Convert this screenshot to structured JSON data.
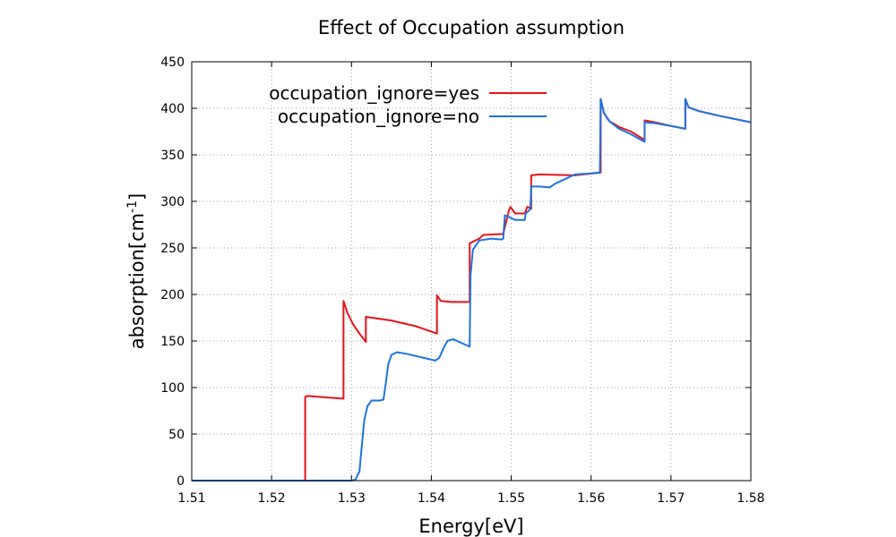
{
  "chart_data": {
    "type": "line",
    "title": "Effect of Occupation assumption",
    "xlabel": "Energy[eV]",
    "ylabel_main": "absorption[cm",
    "ylabel_sup": "-1",
    "ylabel_end": "]",
    "xlim": [
      1.51,
      1.58
    ],
    "ylim": [
      0,
      450
    ],
    "xticks": [
      1.51,
      1.52,
      1.53,
      1.54,
      1.55,
      1.56,
      1.57,
      1.58
    ],
    "xtick_labels": [
      "1.51",
      "1.52",
      "1.53",
      "1.54",
      "1.55",
      "1.56",
      "1.57",
      "1.58"
    ],
    "yticks": [
      0,
      50,
      100,
      150,
      200,
      250,
      300,
      350,
      400,
      450
    ],
    "ytick_labels": [
      "0",
      "50",
      "100",
      "150",
      "200",
      "250",
      "300",
      "350",
      "400",
      "450"
    ],
    "grid": true,
    "legend_position": "top-left",
    "series": [
      {
        "name": "occupation_ignore=yes",
        "color": "#e8121b",
        "points": [
          [
            1.51,
            0
          ],
          [
            1.5242,
            0
          ],
          [
            1.5242,
            90
          ],
          [
            1.5245,
            91
          ],
          [
            1.529,
            88
          ],
          [
            1.529,
            193
          ],
          [
            1.5295,
            180
          ],
          [
            1.5302,
            168
          ],
          [
            1.531,
            158
          ],
          [
            1.5318,
            149
          ],
          [
            1.5318,
            176
          ],
          [
            1.535,
            172
          ],
          [
            1.538,
            166
          ],
          [
            1.5407,
            158
          ],
          [
            1.5407,
            199
          ],
          [
            1.5412,
            193
          ],
          [
            1.5425,
            192
          ],
          [
            1.5448,
            192
          ],
          [
            1.5448,
            255
          ],
          [
            1.546,
            260
          ],
          [
            1.5465,
            264
          ],
          [
            1.549,
            265
          ],
          [
            1.5497,
            290
          ],
          [
            1.5499,
            294
          ],
          [
            1.5505,
            287
          ],
          [
            1.5517,
            287
          ],
          [
            1.552,
            294
          ],
          [
            1.5524,
            293
          ],
          [
            1.5525,
            292
          ],
          [
            1.5525,
            328
          ],
          [
            1.5535,
            329
          ],
          [
            1.558,
            328
          ],
          [
            1.559,
            329
          ],
          [
            1.5612,
            331
          ],
          [
            1.5612,
            410
          ],
          [
            1.5616,
            395
          ],
          [
            1.5623,
            386
          ],
          [
            1.5635,
            380
          ],
          [
            1.565,
            375
          ],
          [
            1.5667,
            366
          ],
          [
            1.5667,
            387
          ],
          [
            1.568,
            385
          ],
          [
            1.57,
            381
          ],
          [
            1.5718,
            378
          ],
          [
            1.5718,
            410
          ],
          [
            1.5722,
            401
          ],
          [
            1.5735,
            397
          ],
          [
            1.576,
            392
          ],
          [
            1.58,
            385
          ]
        ]
      },
      {
        "name": "occupation_ignore=no",
        "color": "#1b74e0",
        "points": [
          [
            1.51,
            0
          ],
          [
            1.53,
            0
          ],
          [
            1.5305,
            1
          ],
          [
            1.531,
            10
          ],
          [
            1.5313,
            38
          ],
          [
            1.5316,
            65
          ],
          [
            1.532,
            80
          ],
          [
            1.5325,
            86
          ],
          [
            1.5335,
            86
          ],
          [
            1.534,
            87
          ],
          [
            1.5343,
            105
          ],
          [
            1.5346,
            125
          ],
          [
            1.535,
            135
          ],
          [
            1.5357,
            138
          ],
          [
            1.537,
            136
          ],
          [
            1.539,
            132
          ],
          [
            1.5405,
            129
          ],
          [
            1.541,
            132
          ],
          [
            1.5415,
            142
          ],
          [
            1.542,
            150
          ],
          [
            1.5427,
            152
          ],
          [
            1.544,
            147
          ],
          [
            1.5448,
            144
          ],
          [
            1.5449,
            220
          ],
          [
            1.5452,
            248
          ],
          [
            1.546,
            258
          ],
          [
            1.5475,
            260
          ],
          [
            1.5488,
            259
          ],
          [
            1.549,
            260
          ],
          [
            1.5492,
            285
          ],
          [
            1.5495,
            284
          ],
          [
            1.5505,
            280
          ],
          [
            1.5517,
            280
          ],
          [
            1.5518,
            287
          ],
          [
            1.5522,
            290
          ],
          [
            1.5524,
            292
          ],
          [
            1.5525,
            316
          ],
          [
            1.5535,
            316
          ],
          [
            1.5548,
            315
          ],
          [
            1.5555,
            319
          ],
          [
            1.5565,
            323
          ],
          [
            1.558,
            329
          ],
          [
            1.56,
            330
          ],
          [
            1.5611,
            331
          ],
          [
            1.5612,
            410
          ],
          [
            1.5616,
            395
          ],
          [
            1.5623,
            386
          ],
          [
            1.5635,
            378
          ],
          [
            1.565,
            372
          ],
          [
            1.5667,
            364
          ],
          [
            1.5667,
            385
          ],
          [
            1.568,
            384
          ],
          [
            1.57,
            381
          ],
          [
            1.5718,
            378
          ],
          [
            1.5718,
            410
          ],
          [
            1.5722,
            401
          ],
          [
            1.5735,
            397
          ],
          [
            1.576,
            392
          ],
          [
            1.58,
            385
          ]
        ]
      }
    ]
  }
}
